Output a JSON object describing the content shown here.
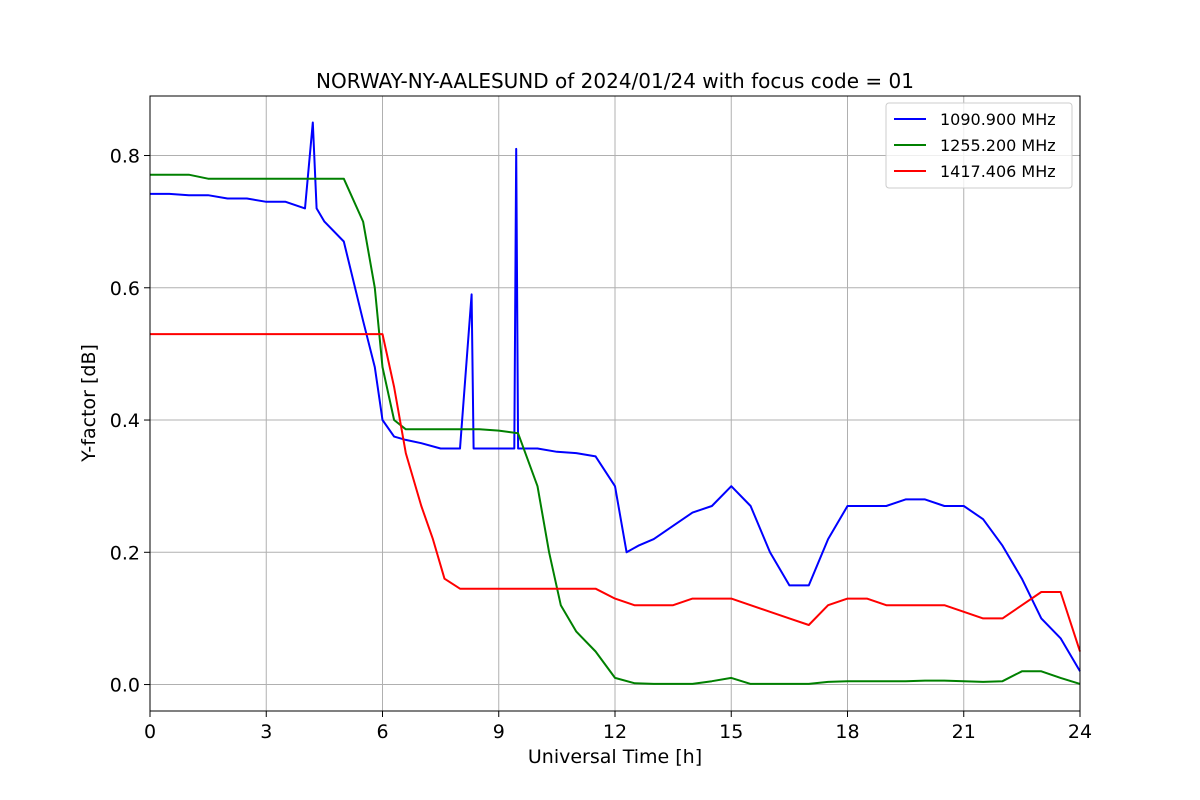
{
  "chart_data": {
    "type": "line",
    "title": "NORWAY-NY-AALESUND of 2024/01/24 with focus code = 01",
    "xlabel": "Universal Time [h]",
    "ylabel": "Y-factor [dB]",
    "xlim": [
      0,
      24
    ],
    "ylim": [
      -0.04,
      0.89
    ],
    "xticks": [
      0,
      3,
      6,
      9,
      12,
      15,
      18,
      21,
      24
    ],
    "xtick_labels": [
      "0",
      "3",
      "6",
      "9",
      "12",
      "15",
      "18",
      "21",
      "24"
    ],
    "yticks": [
      0.0,
      0.2,
      0.4,
      0.6,
      0.8
    ],
    "ytick_labels": [
      "0.0",
      "0.2",
      "0.4",
      "0.6",
      "0.8"
    ],
    "grid": true,
    "legend_position": "top-right",
    "series": [
      {
        "name": "1090.900 MHz",
        "color": "#0000ff",
        "x": [
          0,
          0.5,
          1,
          1.5,
          2,
          2.5,
          3,
          3.5,
          4,
          4.2,
          4.3,
          4.5,
          5,
          5.5,
          5.8,
          6,
          6.3,
          6.6,
          7,
          7.5,
          8,
          8.3,
          8.35,
          8.4,
          8.6,
          9,
          9.4,
          9.45,
          9.5,
          10,
          10.5,
          11,
          11.5,
          12,
          12.3,
          12.6,
          13,
          13.5,
          14,
          14.5,
          15,
          15.5,
          16,
          16.5,
          17,
          17.5,
          18,
          18.5,
          19,
          19.5,
          20,
          20.5,
          21,
          21.5,
          22,
          22.5,
          23,
          23.5,
          24
        ],
        "values": [
          0.742,
          0.742,
          0.74,
          0.74,
          0.735,
          0.735,
          0.73,
          0.73,
          0.72,
          0.85,
          0.72,
          0.7,
          0.67,
          0.55,
          0.48,
          0.4,
          0.375,
          0.37,
          0.365,
          0.357,
          0.357,
          0.59,
          0.357,
          0.357,
          0.357,
          0.357,
          0.357,
          0.81,
          0.357,
          0.357,
          0.352,
          0.35,
          0.345,
          0.3,
          0.2,
          0.21,
          0.22,
          0.24,
          0.26,
          0.27,
          0.3,
          0.27,
          0.2,
          0.15,
          0.15,
          0.22,
          0.27,
          0.27,
          0.27,
          0.28,
          0.28,
          0.27,
          0.27,
          0.25,
          0.21,
          0.16,
          0.1,
          0.07,
          0.02
        ]
      },
      {
        "name": "1255.200 MHz",
        "color": "#008000",
        "x": [
          0,
          0.5,
          1,
          1.5,
          2,
          2.5,
          3,
          3.5,
          4,
          4.5,
          5,
          5.5,
          5.8,
          6,
          6.3,
          6.6,
          7,
          7.5,
          8,
          8.5,
          9,
          9.5,
          10,
          10.3,
          10.6,
          11,
          11.5,
          12,
          12.5,
          13,
          13.5,
          14,
          14.5,
          15,
          15.5,
          16,
          16.5,
          17,
          17.5,
          18,
          18.5,
          19,
          19.5,
          20,
          20.5,
          21,
          21.5,
          22,
          22.5,
          23,
          23.5,
          24
        ],
        "values": [
          0.771,
          0.771,
          0.771,
          0.765,
          0.765,
          0.765,
          0.765,
          0.765,
          0.765,
          0.765,
          0.765,
          0.7,
          0.6,
          0.48,
          0.4,
          0.386,
          0.386,
          0.386,
          0.386,
          0.386,
          0.384,
          0.38,
          0.3,
          0.2,
          0.12,
          0.08,
          0.05,
          0.01,
          0.002,
          0.001,
          0.001,
          0.001,
          0.005,
          0.01,
          0.001,
          0.001,
          0.001,
          0.001,
          0.004,
          0.005,
          0.005,
          0.005,
          0.005,
          0.006,
          0.006,
          0.005,
          0.004,
          0.005,
          0.02,
          0.02,
          0.01,
          0.001
        ]
      },
      {
        "name": "1417.406 MHz",
        "color": "#ff0000",
        "x": [
          0,
          0.5,
          1,
          1.5,
          2,
          2.5,
          3,
          3.5,
          4,
          4.5,
          5,
          5.5,
          6,
          6.3,
          6.6,
          7,
          7.3,
          7.6,
          8,
          8.5,
          9,
          9.5,
          10,
          10.5,
          11,
          11.5,
          12,
          12.5,
          13,
          13.5,
          14,
          14.5,
          15,
          15.5,
          16,
          16.5,
          17,
          17.5,
          18,
          18.5,
          19,
          19.5,
          20,
          20.5,
          21,
          21.5,
          22,
          22.5,
          23,
          23.5,
          24
        ],
        "values": [
          0.53,
          0.53,
          0.53,
          0.53,
          0.53,
          0.53,
          0.53,
          0.53,
          0.53,
          0.53,
          0.53,
          0.53,
          0.53,
          0.45,
          0.35,
          0.27,
          0.22,
          0.16,
          0.145,
          0.145,
          0.145,
          0.145,
          0.145,
          0.145,
          0.145,
          0.145,
          0.13,
          0.12,
          0.12,
          0.12,
          0.13,
          0.13,
          0.13,
          0.12,
          0.11,
          0.1,
          0.09,
          0.12,
          0.13,
          0.13,
          0.12,
          0.12,
          0.12,
          0.12,
          0.11,
          0.1,
          0.1,
          0.12,
          0.14,
          0.14,
          0.05
        ]
      }
    ]
  }
}
